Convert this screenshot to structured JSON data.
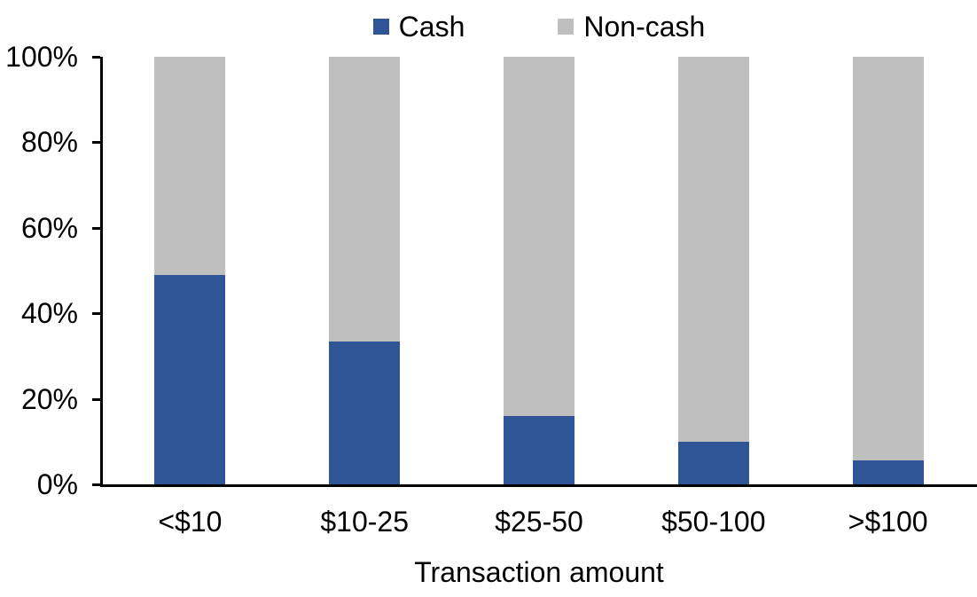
{
  "chart_data": {
    "type": "bar",
    "stacked": true,
    "orientation": "vertical",
    "title": "",
    "xlabel": "Transaction amount",
    "ylabel": "",
    "categories": [
      "<$10",
      "$10-25",
      "$25-50",
      "$50-100",
      ">$100"
    ],
    "series": [
      {
        "name": "Cash",
        "color": "#2F5597",
        "values": [
          49,
          33.5,
          16,
          10,
          5.5
        ]
      },
      {
        "name": "Non-cash",
        "color": "#BFBFBF",
        "values": [
          51,
          66.5,
          84,
          90,
          94.5
        ]
      }
    ],
    "ylim": [
      0,
      100
    ],
    "ytick_step": 20,
    "ytick_labels": [
      "0%",
      "20%",
      "40%",
      "60%",
      "80%",
      "100%"
    ],
    "legend_position": "top-center",
    "grid": false,
    "axis_color": "#000000",
    "background_color": "#FFFFFF",
    "units": "percent"
  }
}
